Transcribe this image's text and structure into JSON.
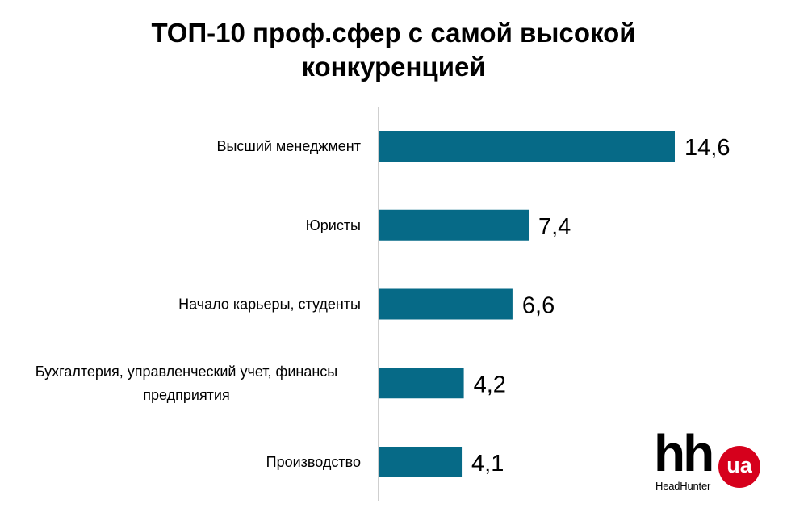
{
  "title": {
    "line1": "ТОП-10 проф.сфер с самой высокой",
    "line2": "конкуренцией"
  },
  "logo": {
    "mark": "hh",
    "badge": "ua",
    "brand": "HeadHunter"
  },
  "colors": {
    "bar": "#066a87",
    "axis": "#bfbfbf",
    "badge": "#d6001c"
  },
  "chart_data": {
    "type": "bar",
    "orientation": "horizontal",
    "categories": [
      [
        "Высший менеджмент"
      ],
      [
        "Юристы"
      ],
      [
        "Начало карьеры, студенты"
      ],
      [
        "Бухгалтерия, управленческий учет, финансы",
        "предприятия"
      ],
      [
        "Производство"
      ]
    ],
    "values": [
      14.6,
      7.4,
      6.6,
      4.2,
      4.1
    ],
    "value_labels": [
      "14,6",
      "7,4",
      "6,6",
      "4,2",
      "4,1"
    ],
    "title": "ТОП-10 проф.сфер с самой высокой конкуренцией",
    "xlabel": "",
    "ylabel": "",
    "xlim": [
      0,
      14.6
    ],
    "grid": false,
    "legend": "none"
  }
}
